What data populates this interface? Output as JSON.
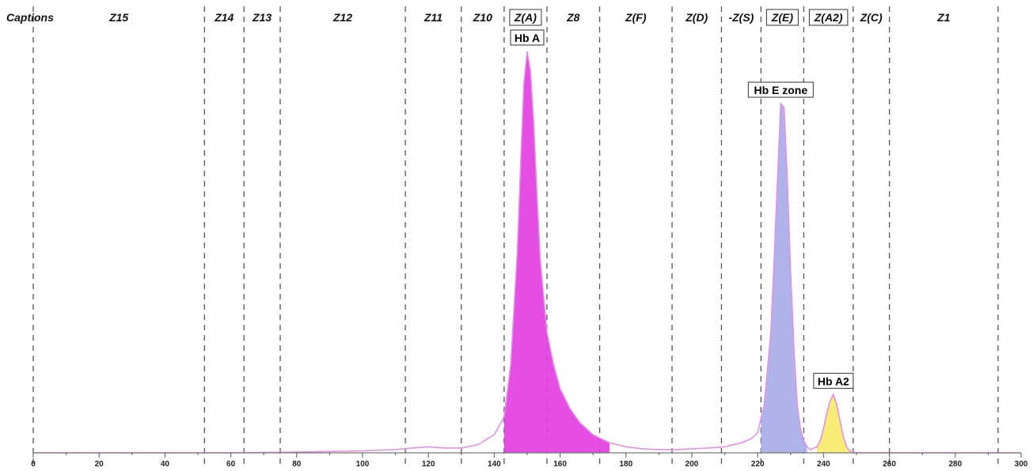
{
  "chart_data": {
    "type": "area",
    "title": "",
    "xlabel": "",
    "ylabel": "",
    "xlim": [
      0,
      300
    ],
    "ylim": [
      0,
      100
    ],
    "grid": false,
    "legend": "none",
    "x_ticks": [
      0,
      20,
      40,
      60,
      80,
      100,
      120,
      140,
      160,
      180,
      200,
      220,
      240,
      260,
      280,
      300
    ],
    "zone_title": "Captions",
    "zones": [
      {
        "label": "Z15",
        "boxed": false,
        "start": 0,
        "end": 52
      },
      {
        "label": "Z14",
        "boxed": false,
        "start": 52,
        "end": 64
      },
      {
        "label": "Z13",
        "boxed": false,
        "start": 64,
        "end": 75
      },
      {
        "label": "Z12",
        "boxed": false,
        "start": 75,
        "end": 113
      },
      {
        "label": "Z11",
        "boxed": false,
        "start": 113,
        "end": 130
      },
      {
        "label": "Z10",
        "boxed": false,
        "start": 130,
        "end": 143
      },
      {
        "label": "Z(A)",
        "boxed": true,
        "start": 143,
        "end": 156
      },
      {
        "label": "Z8",
        "boxed": false,
        "start": 156,
        "end": 172
      },
      {
        "label": "Z(F)",
        "boxed": false,
        "start": 172,
        "end": 194
      },
      {
        "label": "Z(D)",
        "boxed": false,
        "start": 194,
        "end": 209
      },
      {
        "label": "-Z(S)",
        "boxed": false,
        "start": 209,
        "end": 221
      },
      {
        "label": "Z(E)",
        "boxed": true,
        "start": 221,
        "end": 234
      },
      {
        "label": "Z(A2)",
        "boxed": true,
        "start": 234,
        "end": 249
      },
      {
        "label": "Z(C)",
        "boxed": false,
        "start": 249,
        "end": 260
      },
      {
        "label": "Z1",
        "boxed": false,
        "start": 260,
        "end": 293
      }
    ],
    "series": [
      {
        "x": [
          0,
          20,
          40,
          60,
          80,
          100,
          110,
          115,
          120,
          125,
          130,
          135,
          140,
          143,
          145,
          147,
          148,
          149,
          150,
          151,
          152,
          153,
          154,
          156,
          158,
          160,
          163,
          166,
          170,
          175,
          180,
          185,
          190,
          195,
          200,
          205,
          210,
          215,
          218,
          220,
          222,
          224,
          225,
          226,
          227,
          228,
          229,
          230,
          231,
          232,
          233,
          234,
          235,
          236,
          238,
          239,
          240,
          241,
          242,
          243,
          244,
          245,
          246,
          247,
          248,
          250,
          255,
          260,
          280,
          300
        ],
        "values": [
          0,
          0,
          0,
          0,
          0.2,
          0.5,
          0.8,
          1.2,
          1.5,
          1.2,
          1.2,
          2,
          4.5,
          9,
          22,
          50,
          72,
          92,
          100,
          95,
          82,
          64,
          48,
          30,
          22,
          16,
          11,
          7.5,
          4.5,
          2.5,
          1.5,
          1,
          0.8,
          0.8,
          1,
          1.2,
          1.5,
          2.5,
          3.5,
          5,
          12,
          30,
          48,
          68,
          87,
          86,
          68,
          45,
          26,
          12,
          6,
          3,
          1.5,
          0.8,
          1.5,
          3,
          6,
          10,
          13,
          14.5,
          12,
          8,
          4,
          1.5,
          0.5,
          0,
          0,
          0,
          0,
          0
        ]
      }
    ],
    "fills": [
      {
        "from": 143,
        "to": 175,
        "color": "#e23fe0"
      },
      {
        "from": 221,
        "to": 235,
        "color": "#a7aee8"
      },
      {
        "from": 238,
        "to": 249,
        "color": "#f5ea6a"
      }
    ],
    "line_color": "#e58fe6",
    "peaks": [
      {
        "label": "Hb A",
        "x": 150
      },
      {
        "label": "Hb E zone",
        "x": 227
      },
      {
        "label": "Hb A2",
        "x": 243
      }
    ]
  }
}
